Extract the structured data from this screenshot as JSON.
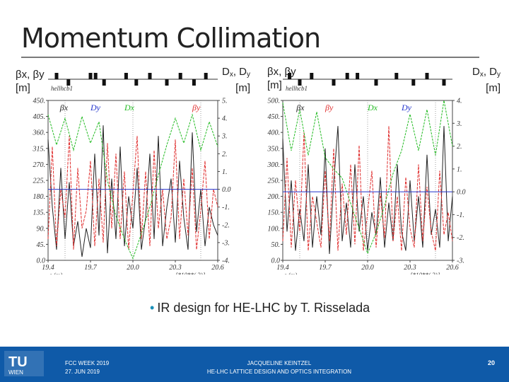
{
  "title": "Momentum Collimation",
  "left_axis_label": {
    "line1": "βx, βy",
    "line2": "[m]"
  },
  "right_axis_label": {
    "main": "D",
    "sub1": "x",
    "sep": ", D",
    "sub2": "y",
    "line2": "[m]"
  },
  "bullet_text": "IR design for HE-LHC by T. Risselada",
  "footer": {
    "event_line1": "FCC WEEK 2019",
    "event_line2": "27. JUN 2019",
    "author": "JACQUELINE KEINTZEL",
    "talk": "HE-LHC LATTICE DESIGN AND OPTICS INTEGRATION",
    "page": "20",
    "logo_text": "TU",
    "logo_sub": "WIEN"
  },
  "colors": {
    "beta_x": "#222222",
    "beta_y": "#e03030",
    "dx": "#22bb22",
    "dy": "#2233cc",
    "footer_bg": "#0f5aa8"
  },
  "chart_data": [
    {
      "type": "line",
      "plot_title": "hellhcb1",
      "xlabel": "s (m)",
      "x_multiplier": "[*10**( 3)]",
      "x_ticks": [
        "19.4",
        "19.7",
        "20.0",
        "20.3",
        "20.6"
      ],
      "xlim": [
        19.4,
        20.6
      ],
      "y_left_ticks": [
        "450.",
        "405.",
        "360.",
        "315.",
        "270.",
        "225.",
        "180.",
        "135.",
        "90.",
        "45.",
        "0.0"
      ],
      "ylim_left": [
        0,
        450
      ],
      "y_right_ticks": [
        "5.",
        "4.",
        "3.",
        "2.",
        "1.",
        "0.0",
        "-1.",
        "-2.",
        "-3.",
        "-4."
      ],
      "ylim_right": [
        -4,
        5
      ],
      "legend": [
        "βx",
        "Dy",
        "Dx",
        "βy"
      ],
      "series": [
        {
          "name": "βx",
          "axis": "left",
          "x": [
            19.4,
            19.43,
            19.46,
            19.49,
            19.52,
            19.55,
            19.58,
            19.61,
            19.64,
            19.67,
            19.7,
            19.73,
            19.76,
            19.79,
            19.82,
            19.85,
            19.88,
            19.91,
            19.94,
            19.97,
            20.0,
            20.03,
            20.06,
            20.09,
            20.12,
            20.15,
            20.18,
            20.21,
            20.24,
            20.27,
            20.3,
            20.33,
            20.36,
            20.39,
            20.42,
            20.45,
            20.48,
            20.51,
            20.54,
            20.57,
            20.6
          ],
          "y": [
            340,
            150,
            30,
            260,
            60,
            220,
            40,
            110,
            10,
            90,
            35,
            300,
            70,
            380,
            20,
            230,
            60,
            320,
            40,
            180,
            90,
            260,
            30,
            120,
            300,
            60,
            350,
            40,
            150,
            230,
            50,
            280,
            120,
            30,
            360,
            80,
            200,
            40,
            150,
            100,
            70
          ]
        },
        {
          "name": "βy",
          "axis": "left",
          "x": [
            19.4,
            19.43,
            19.46,
            19.49,
            19.52,
            19.55,
            19.58,
            19.61,
            19.64,
            19.67,
            19.7,
            19.73,
            19.76,
            19.79,
            19.82,
            19.85,
            19.88,
            19.91,
            19.94,
            19.97,
            20.0,
            20.03,
            20.06,
            20.09,
            20.12,
            20.15,
            20.18,
            20.21,
            20.24,
            20.27,
            20.3,
            20.33,
            20.36,
            20.39,
            20.42,
            20.45,
            20.48,
            20.51,
            20.54,
            20.57,
            20.6
          ],
          "y": [
            60,
            320,
            40,
            200,
            120,
            350,
            30,
            260,
            90,
            140,
            280,
            40,
            230,
            50,
            330,
            90,
            300,
            60,
            250,
            30,
            190,
            350,
            60,
            250,
            40,
            310,
            90,
            200,
            60,
            120,
            340,
            60,
            230,
            70,
            260,
            30,
            140,
            280,
            60,
            200,
            150
          ]
        },
        {
          "name": "Dx",
          "axis": "right",
          "x": [
            19.4,
            19.46,
            19.52,
            19.58,
            19.64,
            19.7,
            19.76,
            19.82,
            19.88,
            19.94,
            20.0,
            20.06,
            20.12,
            20.18,
            20.24,
            20.3,
            20.36,
            20.42,
            20.48,
            20.54,
            20.6
          ],
          "y": [
            4.2,
            2.5,
            4.0,
            2.2,
            4.1,
            2.6,
            3.8,
            0.5,
            -1.5,
            -2.8,
            -3.9,
            -2.5,
            -1.0,
            0.8,
            2.5,
            4.0,
            2.6,
            4.2,
            2.2,
            3.8,
            2.4
          ]
        },
        {
          "name": "Dy",
          "axis": "right",
          "x": [
            19.4,
            20.6
          ],
          "y": [
            0.0,
            0.0
          ]
        }
      ]
    },
    {
      "type": "line",
      "plot_title": "hellhcb1",
      "xlabel": "s (m)",
      "x_multiplier": "[*10**( 3)]",
      "x_ticks": [
        "19.4",
        "19.7",
        "20.0",
        "20.3",
        "20.6"
      ],
      "xlim": [
        19.4,
        20.6
      ],
      "y_left_ticks": [
        "500.",
        "450.",
        "400.",
        "350.",
        "300.",
        "250.",
        "200.",
        "150.",
        "100.",
        "50.",
        "0.0"
      ],
      "ylim_left": [
        0,
        500
      ],
      "y_right_ticks": [
        "4.",
        "3.",
        "2.",
        "1.",
        "0.0",
        "-1.",
        "-2.",
        "-3."
      ],
      "ylim_right": [
        -3,
        4
      ],
      "legend": [
        "βx",
        "βy",
        "Dx",
        "Dy"
      ],
      "series": [
        {
          "name": "βx",
          "axis": "left",
          "x": [
            19.4,
            19.43,
            19.46,
            19.49,
            19.52,
            19.55,
            19.58,
            19.61,
            19.64,
            19.67,
            19.7,
            19.73,
            19.76,
            19.79,
            19.82,
            19.85,
            19.88,
            19.91,
            19.94,
            19.97,
            20.0,
            20.03,
            20.06,
            20.09,
            20.12,
            20.15,
            20.18,
            20.21,
            20.24,
            20.27,
            20.3,
            20.33,
            20.36,
            20.39,
            20.42,
            20.45,
            20.48,
            20.51,
            20.54,
            20.57,
            20.6
          ],
          "y": [
            380,
            90,
            250,
            30,
            160,
            60,
            300,
            40,
            200,
            80,
            350,
            20,
            240,
            420,
            60,
            180,
            40,
            300,
            90,
            200,
            30,
            150,
            80,
            260,
            40,
            180,
            60,
            300,
            90,
            30,
            250,
            60,
            200,
            40,
            330,
            80,
            160,
            40,
            420,
            60,
            200
          ]
        },
        {
          "name": "βy",
          "axis": "left",
          "x": [
            19.4,
            19.43,
            19.46,
            19.49,
            19.52,
            19.55,
            19.58,
            19.61,
            19.64,
            19.67,
            19.7,
            19.73,
            19.76,
            19.79,
            19.82,
            19.85,
            19.88,
            19.91,
            19.94,
            19.97,
            20.0,
            20.03,
            20.06,
            20.09,
            20.12,
            20.15,
            20.18,
            20.21,
            20.24,
            20.27,
            20.3,
            20.33,
            20.36,
            20.39,
            20.42,
            20.45,
            20.48,
            20.51,
            20.54,
            20.57,
            20.6
          ],
          "y": [
            60,
            320,
            40,
            250,
            90,
            400,
            30,
            200,
            120,
            40,
            280,
            60,
            350,
            30,
            240,
            80,
            300,
            50,
            360,
            30,
            150,
            280,
            40,
            210,
            70,
            420,
            60,
            200,
            30,
            260,
            100,
            40,
            300,
            60,
            230,
            90,
            30,
            280,
            80,
            150,
            60
          ]
        },
        {
          "name": "Dx",
          "axis": "right",
          "x": [
            19.4,
            19.46,
            19.52,
            19.58,
            19.64,
            19.7,
            19.76,
            19.82,
            19.88,
            19.94,
            20.0,
            20.06,
            20.12,
            20.18,
            20.24,
            20.3,
            20.36,
            20.42,
            20.48,
            20.54,
            20.6
          ],
          "y": [
            3.9,
            1.8,
            3.6,
            1.6,
            3.5,
            1.5,
            1.0,
            0.6,
            -0.5,
            -1.6,
            -2.7,
            -1.8,
            -0.6,
            0.8,
            1.8,
            3.4,
            1.8,
            3.6,
            1.6,
            4.0,
            2.0
          ]
        },
        {
          "name": "Dy",
          "axis": "right",
          "x": [
            19.4,
            20.6
          ],
          "y": [
            0.0,
            0.0
          ]
        }
      ]
    }
  ]
}
